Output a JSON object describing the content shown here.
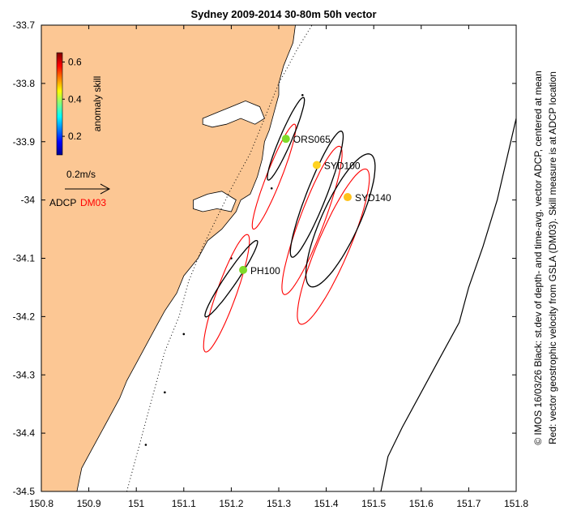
{
  "chart_data": {
    "type": "scatter",
    "title": "Sydney 2009-2014 30-80m 50h vector",
    "xlim": [
      150.8,
      151.8
    ],
    "ylim": [
      -34.5,
      -33.7
    ],
    "x_ticks": [
      150.8,
      150.9,
      151,
      151.1,
      151.2,
      151.3,
      151.4,
      151.5,
      151.6,
      151.7,
      151.8
    ],
    "y_ticks": [
      -33.7,
      -33.8,
      -33.9,
      -34,
      -34.1,
      -34.2,
      -34.3,
      -34.4,
      -34.5
    ],
    "x_tick_labels": [
      "150.8",
      "150.9",
      "151",
      "151.1",
      "151.2",
      "151.3",
      "151.4",
      "151.5",
      "151.6",
      "151.7",
      "151.8"
    ],
    "y_tick_labels": [
      "-33.7",
      "-33.8",
      "-33.9",
      "-34",
      "-34.1",
      "-34.2",
      "-34.3",
      "-34.4",
      "-34.5"
    ],
    "grid": false,
    "side_text_1": "© IMOS 16/03/26 Black: st.dev of depth- and time-avg. vector ADCP, centered at mean",
    "side_text_2": "Red: vector geostrophic velocity from GSLA (DM03). Skill measure is at ADCP location",
    "colorbar": {
      "label": "anomaly skill",
      "range": [
        0.1,
        0.65
      ],
      "ticks": [
        0.2,
        0.4,
        0.6
      ],
      "tick_labels": [
        "0.2",
        "0.4",
        "0.6"
      ],
      "placement": "top-left"
    },
    "scale_arrow": {
      "label": "0.2m/s",
      "legend_adcp": "ADCP",
      "legend_dm03": "DM03",
      "adcp_color": "#000000",
      "dm03_color": "#ff0000"
    },
    "land_color": "#fcc794",
    "stations": [
      {
        "name": "ORS065",
        "lon": 151.315,
        "lat": -33.895,
        "skill": 0.44,
        "color": "#7fdb2a",
        "adcp_ellipse": {
          "cx": 151.315,
          "cy": -33.895,
          "semi_major": 0.08,
          "semi_minor": 0.012,
          "angle_deg": 62
        },
        "gsla_ellipse": {
          "cx": 151.29,
          "cy": -33.96,
          "semi_major": 0.1,
          "semi_minor": 0.015,
          "angle_deg": 64
        }
      },
      {
        "name": "SYD100",
        "lon": 151.38,
        "lat": -33.94,
        "skill": 0.6,
        "color": "#ffd21f",
        "adcp_ellipse": {
          "cx": 151.38,
          "cy": -33.99,
          "semi_major": 0.12,
          "semi_minor": 0.02,
          "angle_deg": 64
        },
        "gsla_ellipse": {
          "cx": 151.37,
          "cy": -34.035,
          "semi_major": 0.14,
          "semi_minor": 0.025,
          "angle_deg": 65
        }
      },
      {
        "name": "SYD140",
        "lon": 151.445,
        "lat": -33.995,
        "skill": 0.62,
        "color": "#ffc21a",
        "adcp_ellipse": {
          "cx": 151.43,
          "cy": -34.035,
          "semi_major": 0.13,
          "semi_minor": 0.038,
          "angle_deg": 60
        },
        "gsla_ellipse": {
          "cx": 151.415,
          "cy": -34.08,
          "semi_major": 0.15,
          "semi_minor": 0.032,
          "angle_deg": 62
        }
      },
      {
        "name": "PH100",
        "lon": 151.225,
        "lat": -34.12,
        "skill": 0.42,
        "color": "#7fdb2a",
        "adcp_ellipse": {
          "cx": 151.2,
          "cy": -34.135,
          "semi_major": 0.085,
          "semi_minor": 0.012,
          "angle_deg": 50
        },
        "gsla_ellipse": {
          "cx": 151.19,
          "cy": -34.16,
          "semi_major": 0.11,
          "semi_minor": 0.02,
          "angle_deg": 66
        }
      }
    ],
    "coastline": [
      [
        150.8,
        -33.7
      ],
      [
        151.335,
        -33.7
      ],
      [
        151.33,
        -33.73
      ],
      [
        151.32,
        -33.75
      ],
      [
        151.31,
        -33.77
      ],
      [
        151.3,
        -33.8
      ],
      [
        151.3,
        -33.82
      ],
      [
        151.29,
        -33.85
      ],
      [
        151.28,
        -33.88
      ],
      [
        151.27,
        -33.9
      ],
      [
        151.265,
        -33.93
      ],
      [
        151.255,
        -33.96
      ],
      [
        151.24,
        -33.99
      ],
      [
        151.22,
        -34.0
      ],
      [
        151.21,
        -34.02
      ],
      [
        151.18,
        -34.05
      ],
      [
        151.15,
        -34.07
      ],
      [
        151.13,
        -34.1
      ],
      [
        151.1,
        -34.13
      ],
      [
        151.085,
        -34.16
      ],
      [
        151.06,
        -34.19
      ],
      [
        151.04,
        -34.22
      ],
      [
        151.02,
        -34.25
      ],
      [
        151.0,
        -34.28
      ],
      [
        150.98,
        -34.31
      ],
      [
        150.965,
        -34.34
      ],
      [
        150.945,
        -34.37
      ],
      [
        150.925,
        -34.4
      ],
      [
        150.905,
        -34.43
      ],
      [
        150.885,
        -34.46
      ],
      [
        150.875,
        -34.5
      ],
      [
        150.8,
        -34.5
      ]
    ],
    "bathymetry_contour": [
      [
        151.515,
        -34.5
      ],
      [
        151.53,
        -34.44
      ],
      [
        151.56,
        -34.39
      ],
      [
        151.6,
        -34.33
      ],
      [
        151.64,
        -34.27
      ],
      [
        151.68,
        -34.21
      ],
      [
        151.7,
        -34.15
      ],
      [
        151.73,
        -34.08
      ],
      [
        151.76,
        -34.0
      ],
      [
        151.78,
        -33.93
      ],
      [
        151.8,
        -33.86
      ]
    ],
    "shelf_contour": [
      [
        150.98,
        -34.5
      ],
      [
        151.0,
        -34.44
      ],
      [
        151.02,
        -34.38
      ],
      [
        151.04,
        -34.32
      ],
      [
        151.06,
        -34.26
      ],
      [
        151.09,
        -34.2
      ],
      [
        151.11,
        -34.14
      ],
      [
        151.14,
        -34.08
      ],
      [
        151.17,
        -34.03
      ],
      [
        151.2,
        -33.98
      ],
      [
        151.24,
        -33.92
      ],
      [
        151.27,
        -33.86
      ],
      [
        151.3,
        -33.8
      ],
      [
        151.34,
        -33.74
      ],
      [
        151.37,
        -33.7
      ]
    ],
    "shelf_markers": [
      [
        151.35,
        -33.82
      ],
      [
        151.285,
        -33.98
      ],
      [
        151.2,
        -34.1
      ],
      [
        151.1,
        -34.23
      ],
      [
        151.06,
        -34.33
      ],
      [
        151.02,
        -34.42
      ]
    ],
    "bays": [
      [
        [
          151.14,
          -33.86
        ],
        [
          151.17,
          -33.85
        ],
        [
          151.2,
          -33.84
        ],
        [
          151.23,
          -33.83
        ],
        [
          151.26,
          -33.84
        ],
        [
          151.27,
          -33.86
        ],
        [
          151.25,
          -33.87
        ],
        [
          151.22,
          -33.86
        ],
        [
          151.19,
          -33.87
        ],
        [
          151.16,
          -33.875
        ],
        [
          151.14,
          -33.87
        ]
      ],
      [
        [
          151.12,
          -34.0
        ],
        [
          151.15,
          -33.99
        ],
        [
          151.18,
          -33.985
        ],
        [
          151.21,
          -34.0
        ],
        [
          151.2,
          -34.02
        ],
        [
          151.17,
          -34.015
        ],
        [
          151.14,
          -34.02
        ],
        [
          151.12,
          -34.015
        ]
      ]
    ]
  }
}
